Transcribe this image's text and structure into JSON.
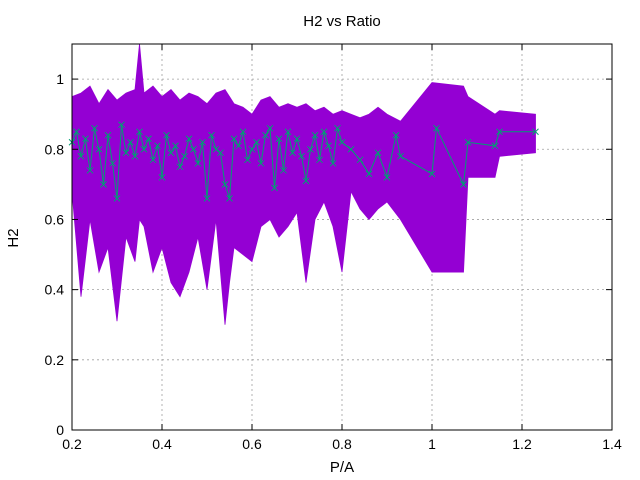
{
  "chart_data": {
    "type": "line",
    "title": "H2 vs Ratio",
    "xlabel": "P/A",
    "ylabel": "H2",
    "xlim": [
      0.2,
      1.4
    ],
    "ylim": [
      0,
      1.1
    ],
    "xticks": [
      "0.2",
      "0.4",
      "0.6",
      "0.8",
      "1",
      "1.2",
      "1.4"
    ],
    "yticks": [
      "0",
      "0.2",
      "0.4",
      "0.6",
      "0.8",
      "1"
    ],
    "grid": true,
    "colors": {
      "band": "#9400d3",
      "line": "#009e73"
    },
    "series": [
      {
        "style": "filled-band",
        "x": [
          0.2,
          0.22,
          0.24,
          0.26,
          0.28,
          0.3,
          0.32,
          0.34,
          0.35,
          0.36,
          0.38,
          0.4,
          0.42,
          0.44,
          0.46,
          0.48,
          0.5,
          0.52,
          0.54,
          0.55,
          0.56,
          0.58,
          0.6,
          0.62,
          0.64,
          0.66,
          0.68,
          0.7,
          0.72,
          0.74,
          0.76,
          0.78,
          0.8,
          0.82,
          0.84,
          0.86,
          0.88,
          0.9,
          0.93,
          1.0,
          1.07,
          1.08,
          1.14,
          1.15,
          1.23
        ],
        "upper": [
          0.95,
          0.96,
          0.98,
          0.93,
          0.97,
          0.94,
          0.96,
          0.97,
          1.1,
          0.96,
          0.98,
          0.95,
          0.97,
          0.94,
          0.96,
          0.95,
          0.93,
          0.96,
          0.97,
          0.95,
          0.93,
          0.92,
          0.9,
          0.94,
          0.95,
          0.92,
          0.93,
          0.92,
          0.93,
          0.91,
          0.92,
          0.9,
          0.91,
          0.9,
          0.89,
          0.9,
          0.92,
          0.9,
          0.88,
          0.99,
          0.98,
          0.95,
          0.9,
          0.91,
          0.9
        ],
        "lower": [
          0.68,
          0.38,
          0.6,
          0.45,
          0.52,
          0.31,
          0.55,
          0.48,
          0.6,
          0.58,
          0.45,
          0.52,
          0.42,
          0.38,
          0.45,
          0.55,
          0.4,
          0.6,
          0.3,
          0.42,
          0.52,
          0.5,
          0.48,
          0.58,
          0.6,
          0.55,
          0.58,
          0.62,
          0.42,
          0.6,
          0.65,
          0.58,
          0.45,
          0.68,
          0.63,
          0.6,
          0.63,
          0.65,
          0.6,
          0.45,
          0.45,
          0.72,
          0.72,
          0.78,
          0.79
        ]
      },
      {
        "style": "line-markers",
        "x": [
          0.2,
          0.21,
          0.22,
          0.23,
          0.24,
          0.25,
          0.26,
          0.27,
          0.28,
          0.29,
          0.3,
          0.31,
          0.32,
          0.33,
          0.34,
          0.35,
          0.36,
          0.37,
          0.38,
          0.39,
          0.4,
          0.41,
          0.42,
          0.43,
          0.44,
          0.45,
          0.46,
          0.47,
          0.48,
          0.49,
          0.5,
          0.51,
          0.52,
          0.53,
          0.54,
          0.55,
          0.56,
          0.57,
          0.58,
          0.59,
          0.6,
          0.61,
          0.62,
          0.63,
          0.64,
          0.65,
          0.66,
          0.67,
          0.68,
          0.69,
          0.7,
          0.71,
          0.72,
          0.73,
          0.74,
          0.75,
          0.76,
          0.77,
          0.78,
          0.79,
          0.8,
          0.82,
          0.84,
          0.86,
          0.88,
          0.9,
          0.92,
          0.93,
          1.0,
          1.01,
          1.07,
          1.08,
          1.14,
          1.15,
          1.23
        ],
        "y": [
          0.82,
          0.85,
          0.78,
          0.83,
          0.74,
          0.86,
          0.8,
          0.7,
          0.84,
          0.76,
          0.66,
          0.87,
          0.79,
          0.82,
          0.78,
          0.85,
          0.8,
          0.83,
          0.77,
          0.81,
          0.72,
          0.84,
          0.79,
          0.81,
          0.75,
          0.78,
          0.83,
          0.8,
          0.76,
          0.82,
          0.66,
          0.84,
          0.8,
          0.79,
          0.7,
          0.66,
          0.83,
          0.81,
          0.85,
          0.77,
          0.8,
          0.82,
          0.76,
          0.84,
          0.86,
          0.69,
          0.83,
          0.74,
          0.85,
          0.79,
          0.83,
          0.78,
          0.71,
          0.8,
          0.84,
          0.77,
          0.85,
          0.81,
          0.76,
          0.86,
          0.82,
          0.8,
          0.77,
          0.73,
          0.79,
          0.72,
          0.84,
          0.78,
          0.73,
          0.86,
          0.7,
          0.82,
          0.81,
          0.85,
          0.85
        ]
      }
    ]
  }
}
